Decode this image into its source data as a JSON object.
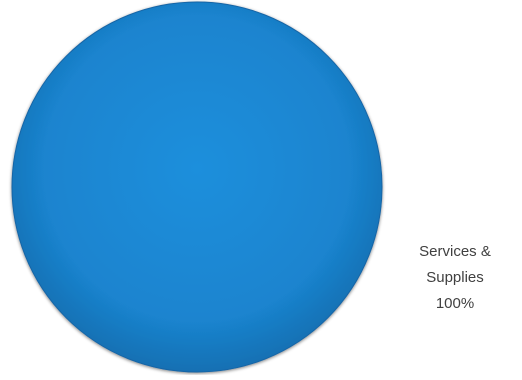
{
  "chart_data": {
    "type": "pie",
    "title": "",
    "slices": [
      {
        "label": "Services & Supplies",
        "label_lines": [
          "Services &",
          "Supplies"
        ],
        "value": 100,
        "percent_text": "100%",
        "color": "#1c86d1"
      }
    ],
    "legend": "none",
    "data_labels": "outside-bottom-right"
  }
}
